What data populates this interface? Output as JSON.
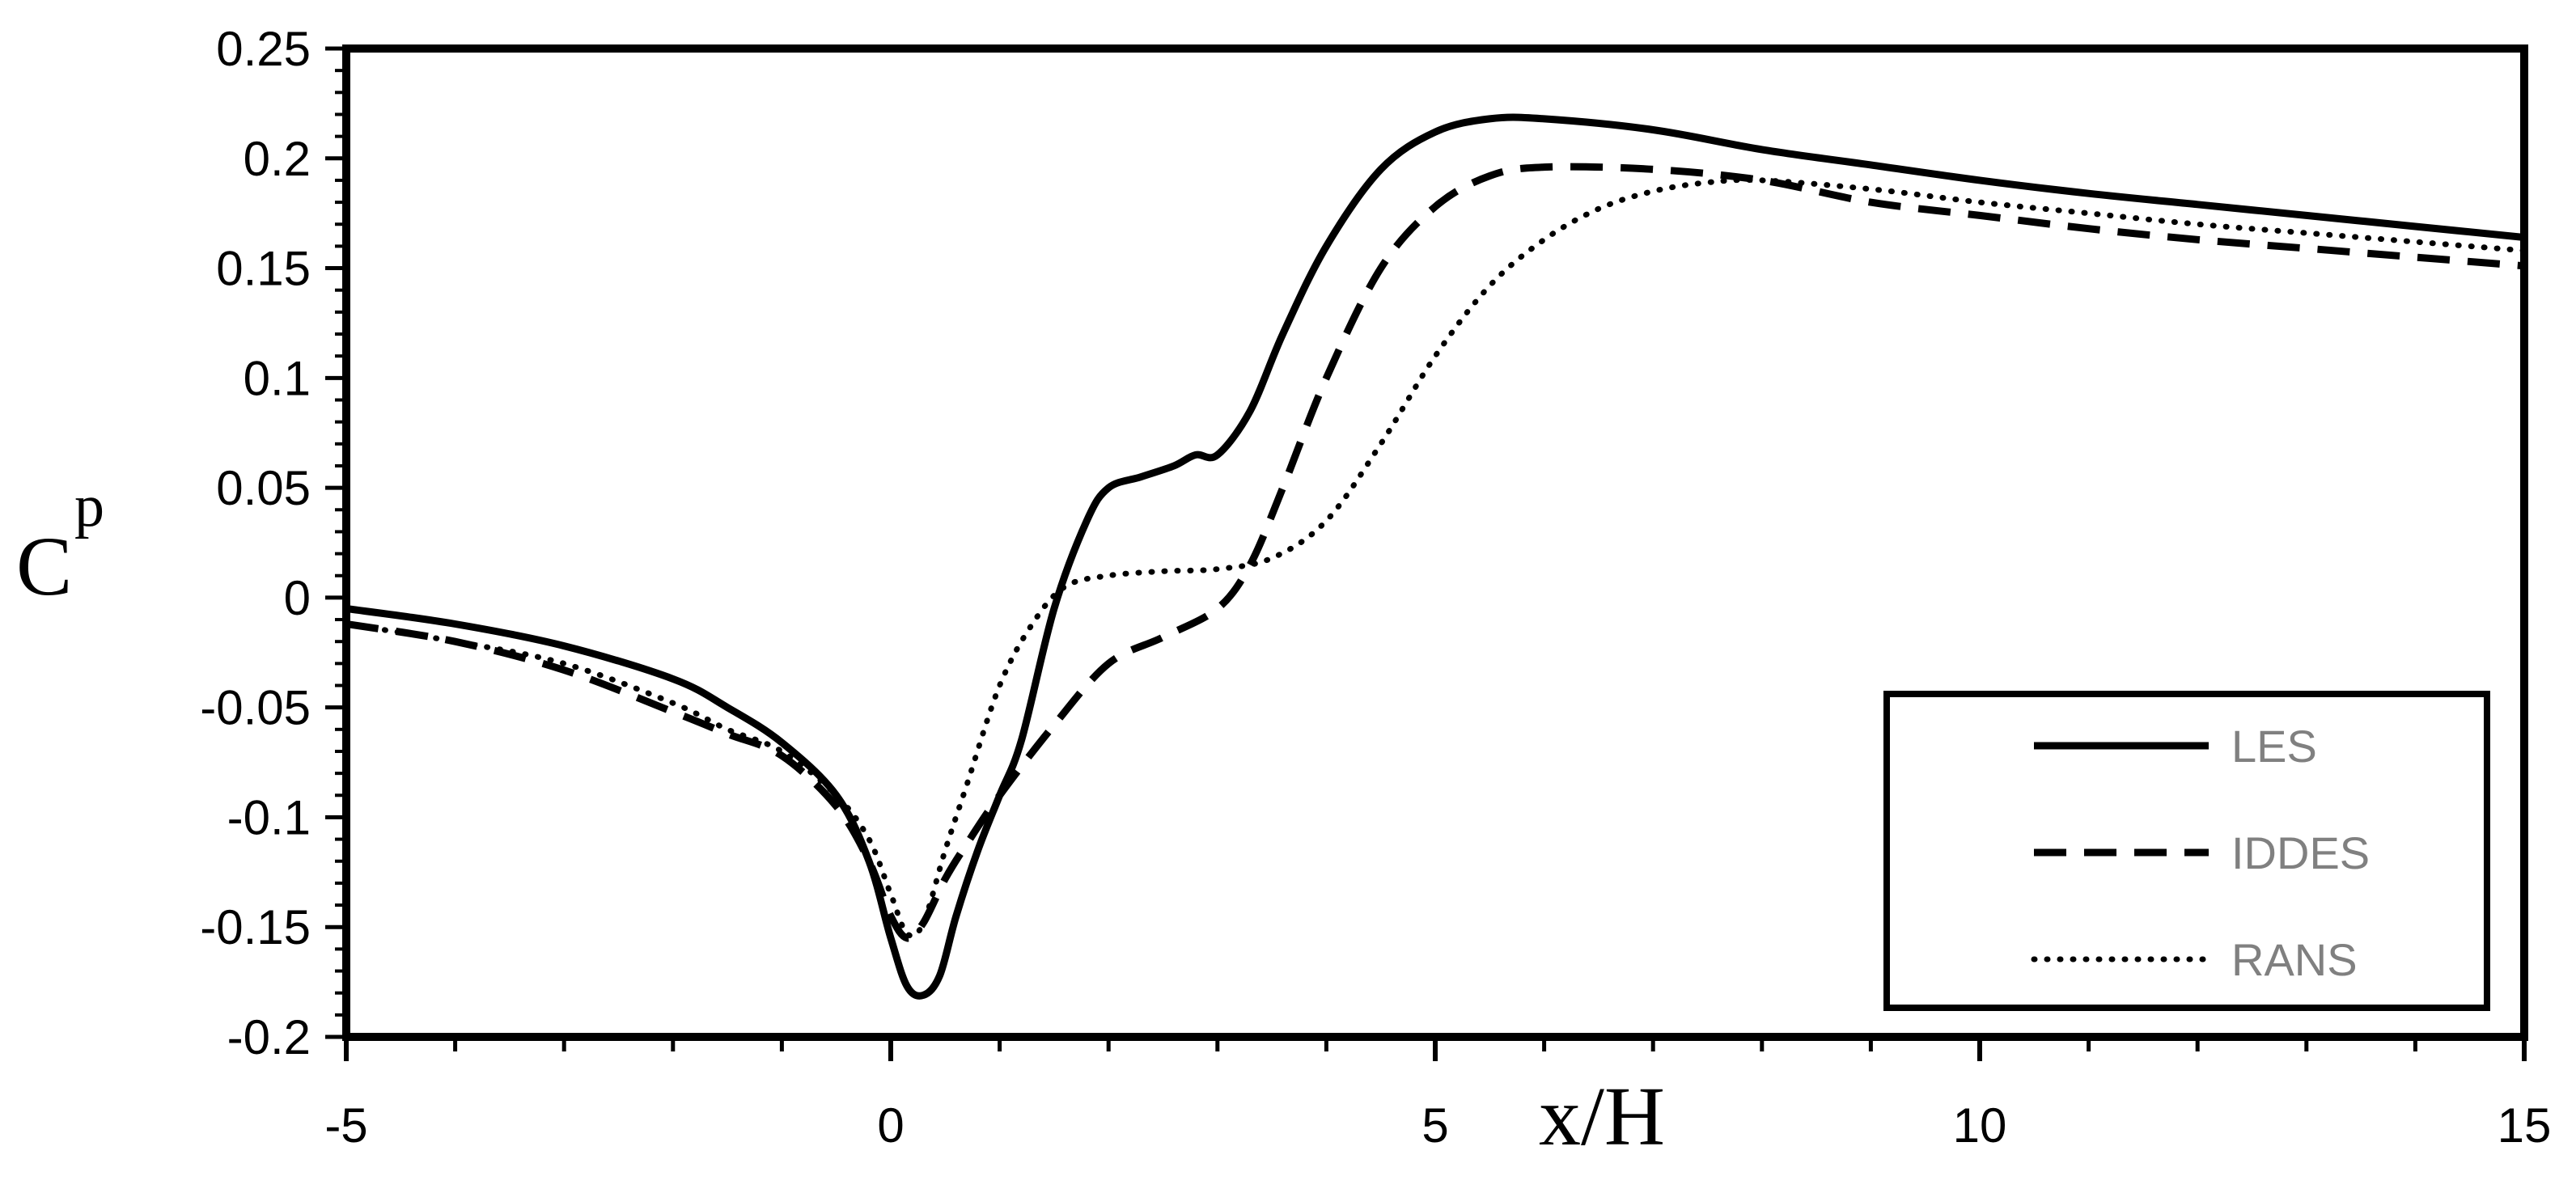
{
  "chart_data": {
    "type": "line",
    "title": "",
    "xlabel": "x/H",
    "ylabel_main": "C",
    "ylabel_sub": "p",
    "xlim": [
      -5,
      15
    ],
    "ylim": [
      -0.2,
      0.25
    ],
    "xticks": [
      -5,
      0,
      5,
      10,
      15
    ],
    "xtick_labels": [
      "-5",
      "0",
      "5",
      "10",
      "15"
    ],
    "yticks": [
      -0.2,
      -0.15,
      -0.1,
      -0.05,
      0,
      0.05,
      0.1,
      0.15,
      0.2,
      0.25
    ],
    "ytick_labels": [
      "-0.2",
      "-0.15",
      "-0.1",
      "-0.05",
      "0",
      "0.05",
      "0.1",
      "0.15",
      "0.2",
      "0.25"
    ],
    "grid": false,
    "legend_position": "bottom-right",
    "series": [
      {
        "name": "LES",
        "style": "solid",
        "x": [
          -5,
          -4,
          -3,
          -2,
          -1.5,
          -1,
          -0.5,
          -0.2,
          0,
          0.15,
          0.3,
          0.45,
          0.6,
          0.8,
          1,
          1.2,
          1.5,
          1.8,
          2,
          2.3,
          2.6,
          2.8,
          3.0,
          3.3,
          3.6,
          4,
          4.5,
          5,
          5.5,
          6,
          7,
          8,
          9,
          10,
          11,
          12,
          13,
          14,
          15
        ],
        "y": [
          -0.005,
          -0.012,
          -0.022,
          -0.037,
          -0.05,
          -0.066,
          -0.09,
          -0.12,
          -0.155,
          -0.177,
          -0.181,
          -0.172,
          -0.145,
          -0.115,
          -0.09,
          -0.065,
          -0.005,
          0.035,
          0.05,
          0.055,
          0.06,
          0.065,
          0.065,
          0.085,
          0.12,
          0.16,
          0.195,
          0.212,
          0.218,
          0.218,
          0.213,
          0.204,
          0.197,
          0.19,
          0.184,
          0.179,
          0.174,
          0.169,
          0.164
        ]
      },
      {
        "name": "IDDES",
        "style": "dashed",
        "x": [
          -5,
          -4,
          -3,
          -2,
          -1.5,
          -1,
          -0.5,
          -0.2,
          0,
          0.15,
          0.3,
          0.5,
          0.7,
          1,
          1.5,
          2,
          2.5,
          3,
          3.3,
          3.6,
          4,
          4.5,
          5,
          5.5,
          6,
          7,
          8,
          9,
          10,
          11,
          12,
          13,
          14,
          15
        ],
        "y": [
          -0.012,
          -0.02,
          -0.033,
          -0.052,
          -0.062,
          -0.072,
          -0.095,
          -0.12,
          -0.145,
          -0.155,
          -0.148,
          -0.128,
          -0.112,
          -0.09,
          -0.058,
          -0.03,
          -0.018,
          -0.005,
          0.015,
          0.05,
          0.1,
          0.15,
          0.178,
          0.192,
          0.196,
          0.195,
          0.19,
          0.18,
          0.174,
          0.168,
          0.163,
          0.159,
          0.155,
          0.151
        ]
      },
      {
        "name": "RANS",
        "style": "dotted",
        "x": [
          -5,
          -4,
          -3,
          -2,
          -1.5,
          -1,
          -0.5,
          -0.2,
          0,
          0.15,
          0.3,
          0.5,
          0.7,
          1,
          1.3,
          1.6,
          2,
          2.5,
          3,
          3.5,
          4,
          4.5,
          5,
          5.5,
          6,
          6.5,
          7,
          7.5,
          8,
          9,
          10,
          11,
          12,
          13,
          14,
          15
        ],
        "y": [
          -0.012,
          -0.02,
          -0.03,
          -0.048,
          -0.06,
          -0.07,
          -0.09,
          -0.11,
          -0.135,
          -0.153,
          -0.148,
          -0.115,
          -0.085,
          -0.04,
          -0.012,
          0.005,
          0.01,
          0.012,
          0.013,
          0.018,
          0.035,
          0.07,
          0.11,
          0.142,
          0.163,
          0.177,
          0.185,
          0.189,
          0.19,
          0.186,
          0.18,
          0.175,
          0.17,
          0.166,
          0.162,
          0.158
        ]
      }
    ]
  }
}
